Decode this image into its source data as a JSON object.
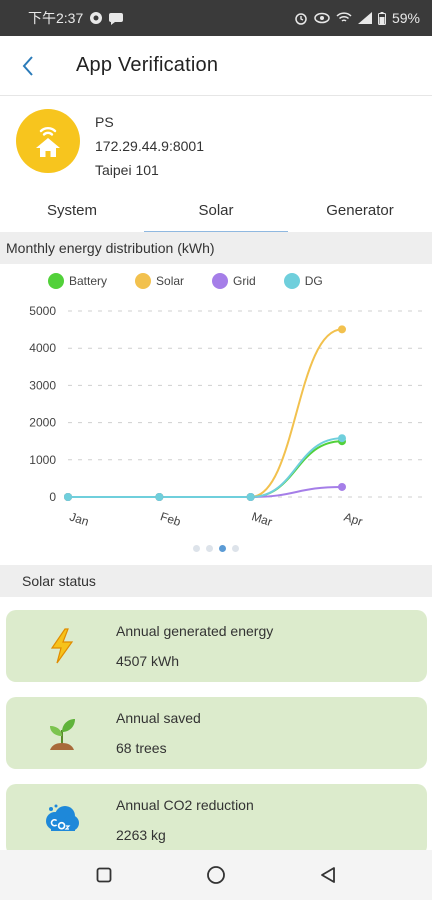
{
  "status_bar": {
    "time": "下午2:37",
    "battery": "59%"
  },
  "app_bar": {
    "title": "App Verification"
  },
  "site": {
    "name": "PS",
    "address": "172.29.44.9:8001",
    "location": "Taipei 101"
  },
  "tabs": [
    {
      "label": "System"
    },
    {
      "label": "Solar"
    },
    {
      "label": "Generator"
    }
  ],
  "chart_section": {
    "title": "Monthly energy distribution (kWh)"
  },
  "chart_data": {
    "type": "line",
    "categories": [
      "Jan",
      "Feb",
      "Mar",
      "Apr"
    ],
    "series": [
      {
        "name": "Battery",
        "color": "#52d13a",
        "values": [
          0,
          0,
          0,
          1500
        ]
      },
      {
        "name": "Solar",
        "color": "#f2c14e",
        "values": [
          0,
          0,
          0,
          4507
        ]
      },
      {
        "name": "Grid",
        "color": "#a57ee8",
        "values": [
          0,
          0,
          0,
          270
        ]
      },
      {
        "name": "DG",
        "color": "#6fcfdc",
        "values": [
          0,
          0,
          0,
          1580
        ]
      }
    ],
    "y_ticks": [
      "0",
      "1000",
      "2000",
      "3000",
      "4000",
      "5000"
    ],
    "ylim": [
      0,
      5000
    ],
    "grid": true,
    "legend_position": "top"
  },
  "solar_status": {
    "title": "Solar status",
    "cards": [
      {
        "label": "Annual generated energy",
        "value": "4507 kWh",
        "icon": "lightning-icon"
      },
      {
        "label": "Annual saved",
        "value": "68 trees",
        "icon": "sprout-icon"
      },
      {
        "label": "Annual CO2 reduction",
        "value": "2263 kg",
        "icon": "co2-cloud-icon"
      }
    ]
  }
}
